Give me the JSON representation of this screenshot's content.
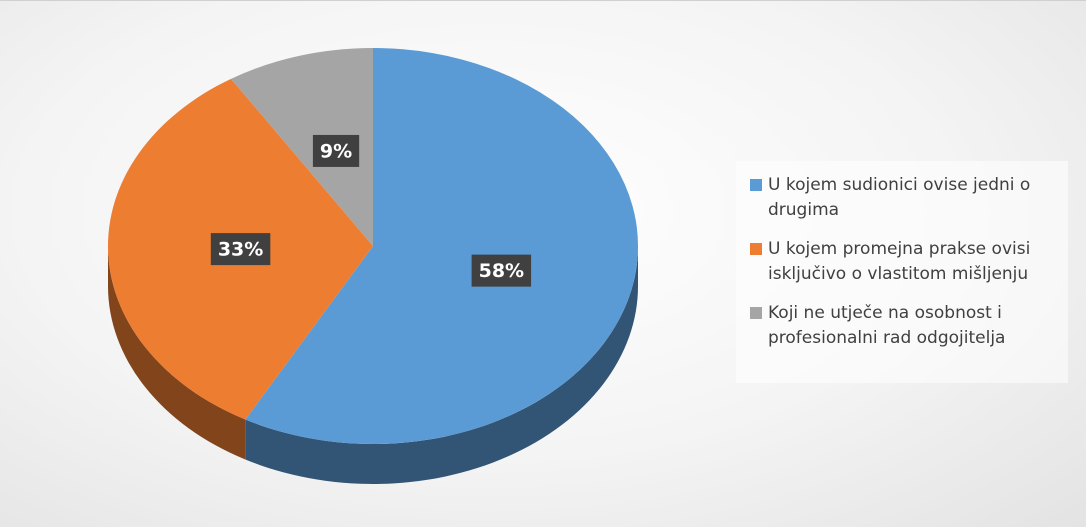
{
  "chart_data": {
    "type": "pie",
    "categories": [
      "U kojem sudionici ovise jedni o drugima",
      "U kojem promejna prakse ovisi isključivo o vlastitom mišljenju",
      "Koji ne utječe na osobnost i profesionalni rad odgojitelja"
    ],
    "values": [
      58,
      33,
      9
    ],
    "value_labels": [
      "58%",
      "33%",
      "9%"
    ],
    "colors": [
      "#5b9bd5",
      "#ed7d31",
      "#a5a5a5"
    ],
    "legend": "right"
  }
}
